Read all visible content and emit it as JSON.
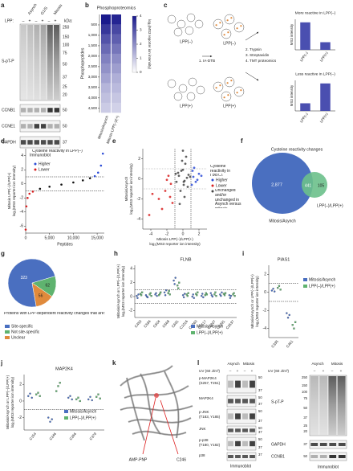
{
  "panel_labels": [
    "a",
    "b",
    "c",
    "d",
    "e",
    "f",
    "g",
    "h",
    "i",
    "j",
    "k",
    "l"
  ],
  "a": {
    "lpp": "LPP:",
    "conditions": [
      "Asynch",
      "G1/S",
      "Mitosis"
    ],
    "signs": [
      "–",
      "+",
      "–",
      "+",
      "–",
      "+"
    ],
    "kda_label": "kDa:",
    "kda": [
      250,
      150,
      100,
      75,
      50,
      37,
      25,
      20
    ],
    "bands": [
      "S-pT-P",
      "CCNB1",
      "CCNE1",
      "GAPDH"
    ],
    "band_kda": [
      50,
      50,
      37
    ],
    "method": "Immunoblot"
  },
  "b": {
    "title": "Phosphoproteomics",
    "ylabel": "Phosphopeptides",
    "ylim": [
      0,
      4700
    ],
    "yticks": [
      500,
      {
        "value": 1000,
        "label": "1,000"
      },
      {
        "value": 1500,
        "label": "1,500"
      },
      {
        "value": 2000,
        "label": "2,000"
      },
      {
        "value": 2500,
        "label": "2,500"
      },
      {
        "value": 3000,
        "label": "3,000"
      },
      {
        "value": 3500,
        "label": "3,500"
      },
      {
        "value": 4000,
        "label": "4,000"
      },
      {
        "value": 4500,
        "label": "4,500"
      }
    ],
    "columns": [
      "Mitosis/Asynch",
      "Mitosis LPP(–)/(+)"
    ],
    "heatmap": [
      [
        4,
        3.5,
        3,
        2.6,
        2.2,
        1.9,
        1.6,
        1.3,
        1.1,
        0.9
      ],
      [
        3.8,
        3.2,
        2.8,
        2.4,
        2,
        1.7,
        1.4,
        1.2,
        1,
        0.8
      ]
    ],
    "colorbar": {
      "lim": [
        0,
        4
      ],
      "ticks": [
        0,
        1,
        2,
        3,
        4
      ],
      "label": "log₂(MS3 reporter ion intensity)"
    }
  },
  "c": {
    "lpp_minus": "LPP(–)",
    "lpp_plus": "LPP(+)",
    "steps": [
      "1. IA-DTB",
      "2. Trypsin",
      "3. Streptavidin",
      "4. TMT proteomics"
    ],
    "charts": [
      {
        "title": "More reactive in LPP(–)",
        "values": [
          0.9,
          0.25
        ]
      },
      {
        "title": "Less reactive in LPP(–)",
        "values": [
          0.25,
          0.9
        ]
      }
    ],
    "categories": [
      "LPP(–)",
      "LPP(+)"
    ],
    "ylabel": "MS3 intensity",
    "ylim": [
      0,
      1
    ],
    "color": "#4a4fb0"
  },
  "d": {
    "legend_title": "Cysteine reactivity in LPP(–)",
    "series": [
      {
        "name": "Higher",
        "color": "#2b4bd6"
      },
      {
        "name": "Lower",
        "color": "#d81f1f"
      }
    ],
    "base_color": "#111",
    "x": [
      0,
      150,
      400,
      800,
      1500,
      3000,
      5000,
      7500,
      10000,
      12000,
      13500,
      14500,
      15200,
      15800,
      16200
    ],
    "values": [
      -6.5,
      -3.2,
      -2,
      -1.4,
      -1.1,
      -0.7,
      -0.4,
      -0.1,
      0.2,
      0.5,
      0.8,
      1.1,
      1.6,
      2.6,
      4.3
    ],
    "thresholds": [
      -1,
      1
    ],
    "xlim": [
      0,
      16500
    ],
    "ylim": [
      -7,
      5
    ],
    "xticks": [
      0,
      {
        "value": 5000,
        "label": "5,000"
      },
      {
        "value": 10000,
        "label": "10,000"
      },
      {
        "value": 15000,
        "label": "15,000"
      }
    ],
    "yticks": [
      -6,
      -4,
      -2,
      0,
      2,
      4
    ],
    "xlabel": "Peptides",
    "ylabel": [
      "Mitosis LPP(–)/LPP(+)",
      "log₂(MS3 reporter ion intensity)"
    ]
  },
  "e": {
    "legend_title": "Cysteine reactivity in LPP(–)",
    "series": [
      {
        "name": "Higher",
        "color": "#2b4bd6",
        "x": [
          1.3,
          1.6,
          2,
          1.2,
          1.8,
          1.4,
          2.3,
          1.1
        ],
        "values": [
          0.2,
          -0.3,
          0.5,
          0.8,
          -0.1,
          1.1,
          0.3,
          -0.6
        ]
      },
      {
        "name": "Lower",
        "color": "#d81f1f",
        "x": [
          -1.5,
          -2.2,
          -3,
          -1.8,
          -2.6,
          -3.8,
          -1.3,
          -2,
          -4.2,
          -1.6
        ],
        "values": [
          -0.5,
          -1.2,
          -2,
          0.3,
          -3,
          -1.5,
          -2.4,
          -0.1,
          -3.6,
          -1.8
        ]
      },
      {
        "name": "Unchanged and/or unchanged in Asynch versus mitosis",
        "color": "#444",
        "x": [
          -0.5,
          0.2,
          -0.2,
          0.5,
          0.1,
          -0.8,
          0.7,
          -0.3,
          0.3,
          0,
          -0.6,
          0.6,
          0.2,
          -0.1,
          0.4,
          -0.4,
          0.9,
          -0.9,
          0,
          0.1
        ],
        "values": [
          0.3,
          -0.2,
          0.8,
          0.1,
          -0.6,
          -0.3,
          0.4,
          -1.2,
          1.5,
          0.9,
          0.6,
          -0.8,
          -1.8,
          1.8,
          2.2,
          -2.5,
          0.2,
          0.5,
          2.8,
          -0.3
        ]
      }
    ],
    "thresholds": [
      -1,
      1
    ],
    "xlim": [
      -5,
      3
    ],
    "ylim": [
      -5,
      3
    ],
    "xticks": [
      -4,
      -2,
      0,
      2
    ],
    "yticks": [
      -4,
      -2,
      0,
      2
    ],
    "xlabel": [
      "Mitosis LPP(–)/LPP(+)",
      "log₂(MS3 reporter ion intensity)"
    ],
    "ylabel": [
      "Mitosis/Asynch",
      "log₂(MS3 reporter ion intensity)"
    ]
  },
  "f": {
    "title": "Cysteine reactivity changes",
    "values": [
      2877,
      441,
      105
    ],
    "value_labels": [
      "2,877",
      "441",
      "105"
    ],
    "names": [
      "Mitosis/Asynch",
      "LPP(–)/LPP(+)"
    ],
    "colors": [
      "#4a6fc0",
      "#6cc08b"
    ]
  },
  "g": {
    "values": [
      323,
      62,
      56
    ],
    "colors": [
      "#4a6fc0",
      "#5fb36f",
      "#e08a3c"
    ],
    "legend_title": "Proteins with LPP-dependent reactivity changes that are:",
    "names": [
      "Site-specific",
      "Not site-specific",
      "Unclear"
    ]
  },
  "h": {
    "title": "FLNB",
    "categories": [
      "C450",
      "C594",
      "C604",
      "C668",
      "C691",
      "C1016",
      "C1260",
      "C1617",
      "C2207",
      "C2291",
      "C2637"
    ],
    "series": [
      {
        "name": "Mitosis/Asynch",
        "color": "#4a6fc0",
        "values": [
          [
            0.1,
            -0.2,
            0.3
          ],
          [
            0.2,
            0,
            -0.1
          ],
          [
            0.3,
            0.5,
            0.1
          ],
          [
            0.6,
            0.2,
            0.9
          ],
          [
            2.3,
            1.8,
            2.7
          ],
          [
            0.2,
            -0.1,
            0.4
          ],
          [
            0,
            0.3,
            -0.2
          ],
          [
            0.1,
            0.4,
            -0.1
          ],
          [
            0.5,
            0.2,
            0
          ],
          [
            0.3,
            0.1,
            0.6
          ],
          [
            0.2,
            -0.2,
            0.1
          ]
        ]
      },
      {
        "name": "LPP(–)/LPP(+)",
        "color": "#5fb36f",
        "values": [
          [
            0.4,
            0.2,
            0.6
          ],
          [
            0.3,
            0.5,
            0.1
          ],
          [
            0.2,
            0.4,
            0.6
          ],
          [
            0.5,
            0.8,
            0.3
          ],
          [
            1.6,
            1.2,
            2
          ],
          [
            0.3,
            0.1,
            0.5
          ],
          [
            0.4,
            0.2,
            0.6
          ],
          [
            0.2,
            0.5,
            0.3
          ],
          [
            0.3,
            0.6,
            0.1
          ],
          [
            0.4,
            0.2,
            0.5
          ],
          [
            0.3,
            0.5,
            0.1
          ]
        ]
      }
    ],
    "thresholds": [
      -1,
      1
    ],
    "ylim": [
      -3,
      4.5
    ],
    "yticks": [
      -2,
      0,
      2,
      4
    ],
    "ylabel": [
      "Mitosis/Asynch or LPP(–)/LPP(+)",
      "log₂(MS3 reporter ion intensity)"
    ]
  },
  "i": {
    "title": "PIAS1",
    "categories": [
      "C335",
      "C461"
    ],
    "series": [
      {
        "name": "Mitosis/Asynch",
        "color": "#4a6fc0",
        "values": [
          [
            0.2,
            0.4,
            0.1
          ],
          [
            -2.3,
            -2.8,
            -2.5
          ]
        ]
      },
      {
        "name": "LPP(–)/LPP(+)",
        "color": "#5fb36f",
        "values": [
          [
            0.5,
            0.7,
            0.3
          ],
          [
            -3.6,
            -4,
            -3.3
          ]
        ]
      }
    ],
    "thresholds": [
      -1,
      1
    ],
    "ylim": [
      -5,
      3
    ],
    "yticks": [
      -4,
      -2,
      0,
      2
    ],
    "ylabel": [
      "Mitosis/Asynch or LPP(–)/LPP(+)",
      "log₂(MS3 reporter ion intensity)"
    ]
  },
  "j": {
    "title": "MAP2K4",
    "categories": [
      "C154",
      "C246",
      "C266",
      "C379"
    ],
    "series": [
      {
        "name": "Mitosis/Asynch",
        "color": "#4a6fc0",
        "values": [
          [
            0.6,
            0.9,
            0.4
          ],
          [
            -2,
            -2.5,
            -2.2
          ],
          [
            0.4,
            0.6,
            0.2
          ],
          [
            0.2,
            0.5,
            0.1
          ]
        ]
      },
      {
        "name": "LPP(–)/LPP(+)",
        "color": "#5fb36f",
        "values": [
          [
            0.8,
            1,
            0.6
          ],
          [
            1.2,
            1.8,
            2.2
          ],
          [
            0.2,
            0.4,
            0
          ],
          [
            0.5,
            0.8,
            0.3
          ]
        ]
      }
    ],
    "thresholds": [
      -1
    ],
    "ylim": [
      -3.5,
      3.2
    ],
    "yticks": [
      -2,
      0,
      2
    ],
    "ylabel": [
      "Mitosis/Asynch or LPP(–)/LPP(+)",
      "log₂(MS3 reporter ion intensity)"
    ]
  },
  "k": {
    "labels": [
      "AMP-PNP",
      "C246"
    ]
  },
  "l": {
    "uv": "UV (60 J/m²)",
    "conditions": [
      "Asynch",
      "Mitosis"
    ],
    "signs": [
      "–",
      "+",
      "–",
      "+"
    ],
    "rows": [
      {
        "label": [
          "p-MAP2K4",
          "(S257, T261)"
        ],
        "kda": [
          50,
          37
        ]
      },
      {
        "label": [
          "MAP2K4"
        ],
        "kda": [
          50,
          37
        ]
      },
      {
        "label": [
          "p-JNK",
          "(T183, Y185)"
        ],
        "kda": [
          50,
          37
        ]
      },
      {
        "label": [
          "JNK"
        ],
        "kda": [
          50,
          37
        ]
      },
      {
        "label": [
          "p-p38",
          "(T180, Y182)"
        ],
        "kda": [
          50,
          37
        ]
      },
      {
        "label": [
          "p38"
        ],
        "kda": [
          37
        ]
      }
    ],
    "method": "Immunoblot",
    "right": {
      "bands": [
        "S-pT-P",
        "GAPDH",
        "CCNB1"
      ],
      "kda": [
        250,
        150,
        100,
        75,
        50,
        37,
        25,
        20
      ],
      "band_kda": [
        37,
        50
      ]
    }
  }
}
